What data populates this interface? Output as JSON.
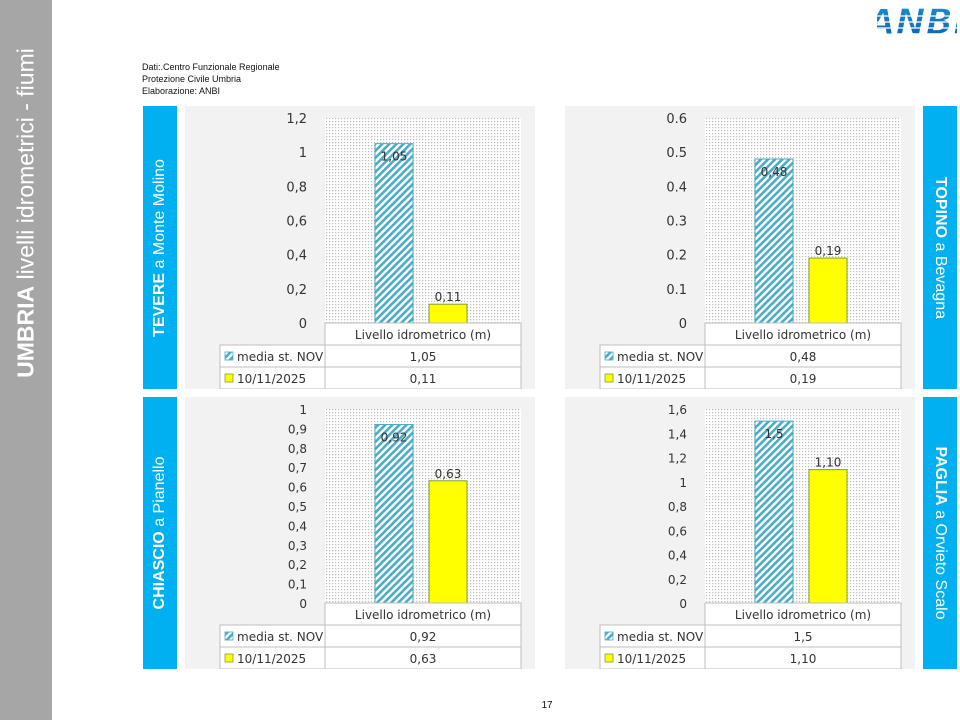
{
  "sidebar": {
    "title_bold": "UMBRIA",
    "title_rest": " livelli idrometrici - fiumi"
  },
  "logo": {
    "text": "ANBI"
  },
  "credits": {
    "line1": "Dati:.Centro Funzionale Regionale",
    "line2": "Protezione Civile Umbria",
    "line3": "Elaborazione: ANBI"
  },
  "rivers": [
    {
      "bold": "TEVERE",
      "rest": " a Monte Molino"
    },
    {
      "bold": "TOPINO",
      "rest": " a Bevagna"
    },
    {
      "bold": "CHIASCIO",
      "rest": " a Pianello"
    },
    {
      "bold": "PAGLIA",
      "rest": " a Orvieto Scalo"
    }
  ],
  "colors": {
    "series1": "#4bacc6",
    "series2": "#ffff00",
    "accent": "#00b0f0",
    "sidebar": "#a6a6a6",
    "panel": "#f2f2f2"
  },
  "chart_data": [
    {
      "type": "bar",
      "categories": [
        "Livello idrometrico (m)"
      ],
      "series": [
        {
          "name": "media st. NOV",
          "values": [
            1.05
          ],
          "labels": [
            "1,05"
          ]
        },
        {
          "name": "10/11/2025",
          "values": [
            0.11
          ],
          "labels": [
            "0,11"
          ]
        }
      ],
      "ylim": [
        0,
        1.2
      ],
      "yticks": [
        "0",
        "0,2",
        "0,4",
        "0,6",
        "0,8",
        "1",
        "1,2"
      ],
      "table": true
    },
    {
      "type": "bar",
      "categories": [
        "Livello idrometrico (m)"
      ],
      "series": [
        {
          "name": "media st. NOV",
          "values": [
            0.48
          ],
          "labels": [
            "0,48"
          ]
        },
        {
          "name": "10/11/2025",
          "values": [
            0.19
          ],
          "labels": [
            "0,19"
          ]
        }
      ],
      "ylim": [
        0,
        0.6
      ],
      "yticks": [
        "0",
        "0.1",
        "0.2",
        "0.3",
        "0.4",
        "0.5",
        "0.6"
      ],
      "table": true
    },
    {
      "type": "bar",
      "categories": [
        "Livello idrometrico (m)"
      ],
      "series": [
        {
          "name": "media st. NOV",
          "values": [
            0.92
          ],
          "labels": [
            "0,92"
          ]
        },
        {
          "name": "10/11/2025",
          "values": [
            0.63
          ],
          "labels": [
            "0,63"
          ]
        }
      ],
      "ylim": [
        0,
        1
      ],
      "yticks": [
        "0",
        "0,1",
        "0,2",
        "0,3",
        "0,4",
        "0,5",
        "0,6",
        "0,7",
        "0,8",
        "0,9",
        "1"
      ],
      "table": true
    },
    {
      "type": "bar",
      "categories": [
        "Livello idrometrico (m)"
      ],
      "series": [
        {
          "name": "media st. NOV",
          "values": [
            1.5
          ],
          "labels": [
            "1,5"
          ]
        },
        {
          "name": "10/11/2025",
          "values": [
            1.1
          ],
          "labels": [
            "1,10"
          ]
        }
      ],
      "ylim": [
        0,
        1.6
      ],
      "yticks": [
        "0",
        "0,2",
        "0,4",
        "0,6",
        "0,8",
        "1",
        "1,2",
        "1,4",
        "1,6"
      ],
      "table": true
    }
  ],
  "page": {
    "number": "17"
  }
}
